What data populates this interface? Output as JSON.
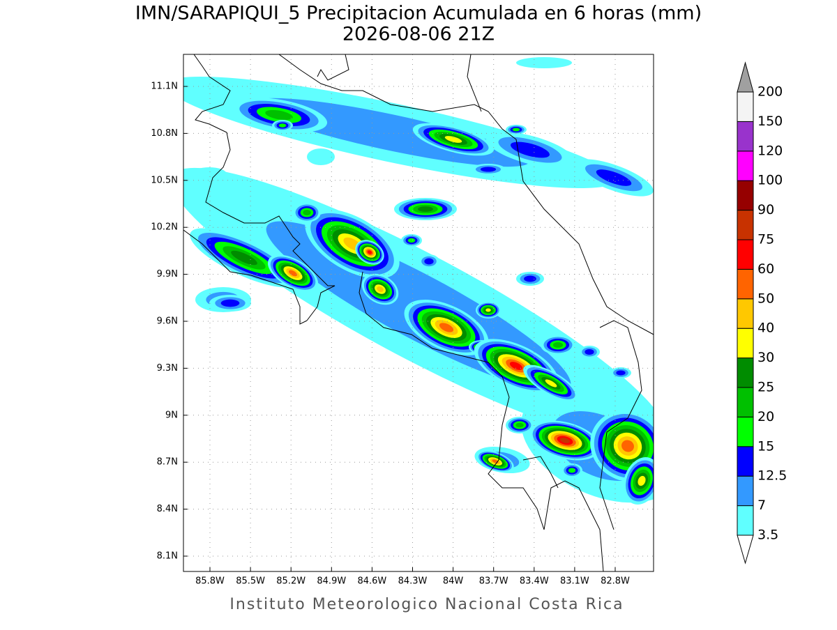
{
  "title": "IMN/SARAPIQUI_5 Precipitacion Acumulada en 6 horas (mm)",
  "subtitle": "2026-08-06 21Z",
  "map": {
    "lat_ticks": [
      "11.1N",
      "10.8N",
      "10.5N",
      "10.2N",
      "9.9N",
      "9.6N",
      "9.3N",
      "9N",
      "8.7N",
      "8.4N",
      "8.1N"
    ],
    "lon_ticks": [
      "85.8W",
      "85.5W",
      "85.2W",
      "84.9W",
      "84.6W",
      "84.3W",
      "84W",
      "83.7W",
      "83.4W",
      "83.1W",
      "82.8W"
    ]
  },
  "colorbar": {
    "levels": [
      3.5,
      7,
      12.5,
      15,
      20,
      25,
      30,
      40,
      50,
      60,
      75,
      90,
      100,
      120,
      150,
      200
    ],
    "under_color": "#ffffff",
    "over_color": "#a0a0a0",
    "colors": [
      "#60ffff",
      "#3399ff",
      "#0000ff",
      "#00ff00",
      "#00c000",
      "#008c00",
      "#ffff00",
      "#ffc800",
      "#ff6400",
      "#ff0000",
      "#c83200",
      "#960000",
      "#ff00ff",
      "#9933cc",
      "#f4f4f4"
    ]
  },
  "footer": "Instituto Meteorologico Nacional Costa Rica"
}
